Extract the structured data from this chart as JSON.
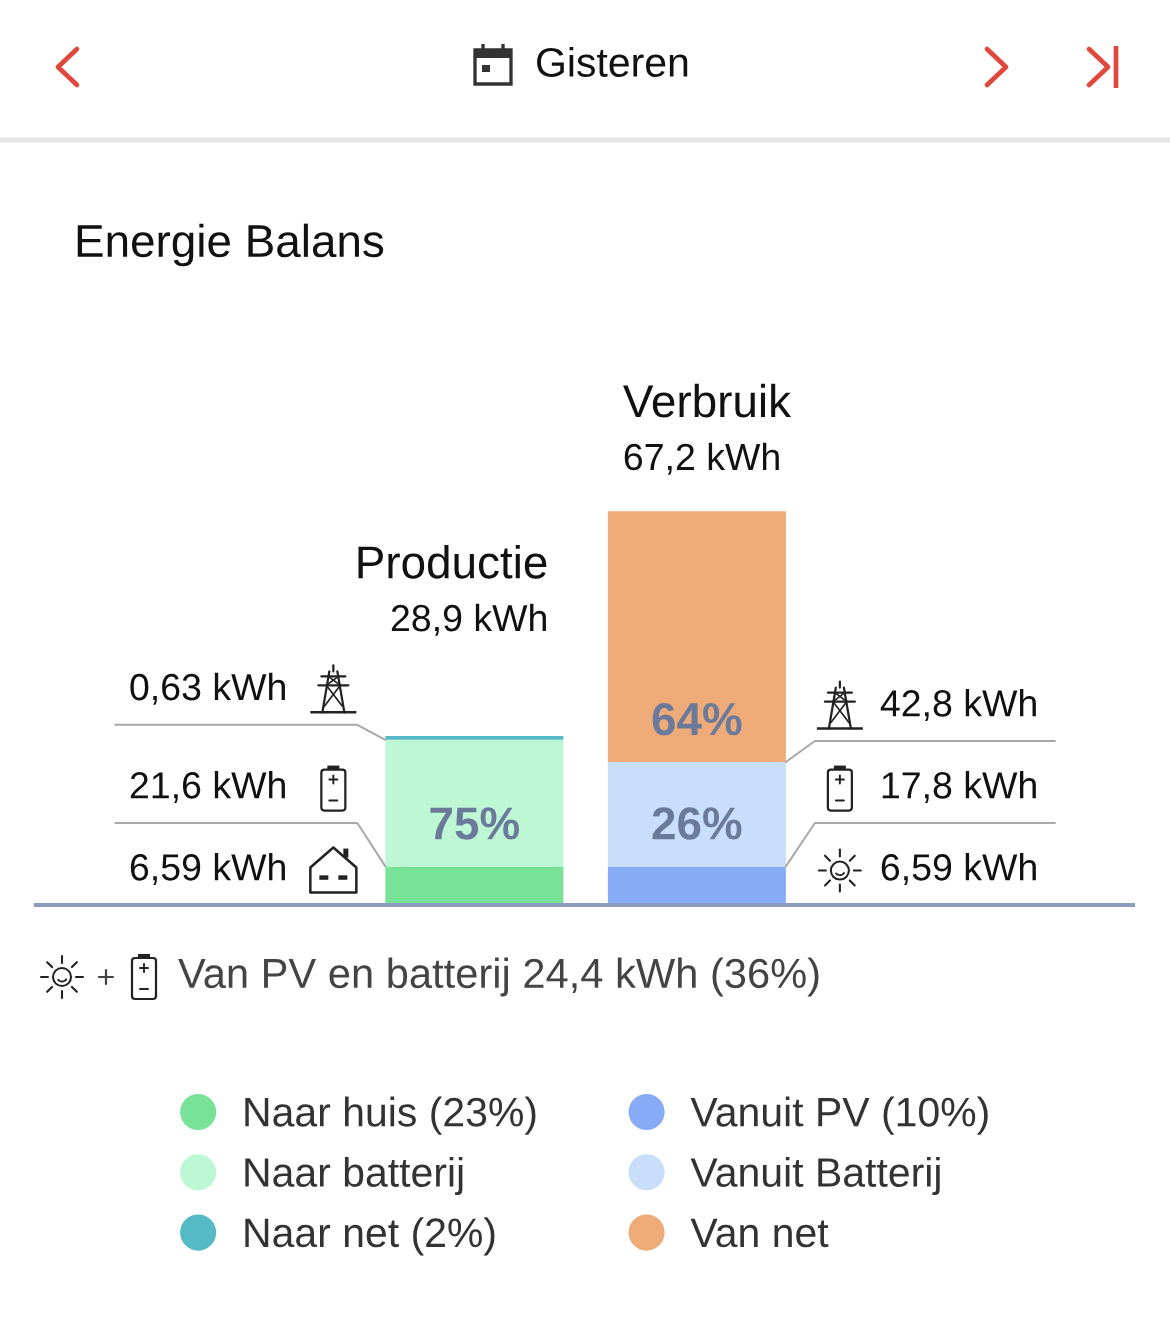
{
  "chart_data": {
    "type": "bar",
    "title": "Energie Balans",
    "categories": [
      "Productie",
      "Verbruik"
    ],
    "stacked": true,
    "tick_labels": "x",
    "legend": "bottom",
    "totals": [
      "28,9 kWh",
      "67,2 kWh"
    ],
    "series": [
      {
        "name": "Naar huis (23%)",
        "color": "#78e398",
        "values": [
          6.59,
          null
        ],
        "value_labels": [
          "6,59 kWh",
          null
        ]
      },
      {
        "name": "Naar batterij",
        "color": "#bdf7d3",
        "values": [
          21.6,
          null
        ],
        "value_labels": [
          "21,6 kWh",
          null
        ]
      },
      {
        "name": "Naar net (2%)",
        "color": "#56b9c6",
        "values": [
          0.63,
          null
        ],
        "value_labels": [
          "0,63 kWh",
          null
        ]
      },
      {
        "name": "Vanuit PV (10%)",
        "color": "#88abf7",
        "values": [
          null,
          6.59
        ],
        "value_labels": [
          null,
          "6,59 kWh"
        ]
      },
      {
        "name": "Vanuit Batterij",
        "color": "#c9defb",
        "values": [
          null,
          17.8
        ],
        "value_labels": [
          null,
          "17,8 kWh"
        ]
      },
      {
        "name": "Van net",
        "color": "#eeab78",
        "values": [
          null,
          42.8
        ],
        "value_labels": [
          null,
          "42,8 kWh"
        ]
      }
    ],
    "annotations": [
      "Gisteren",
      "75%",
      "64%",
      "26%",
      "Van PV en batterij 24,4 kWh (36%)"
    ]
  }
}
